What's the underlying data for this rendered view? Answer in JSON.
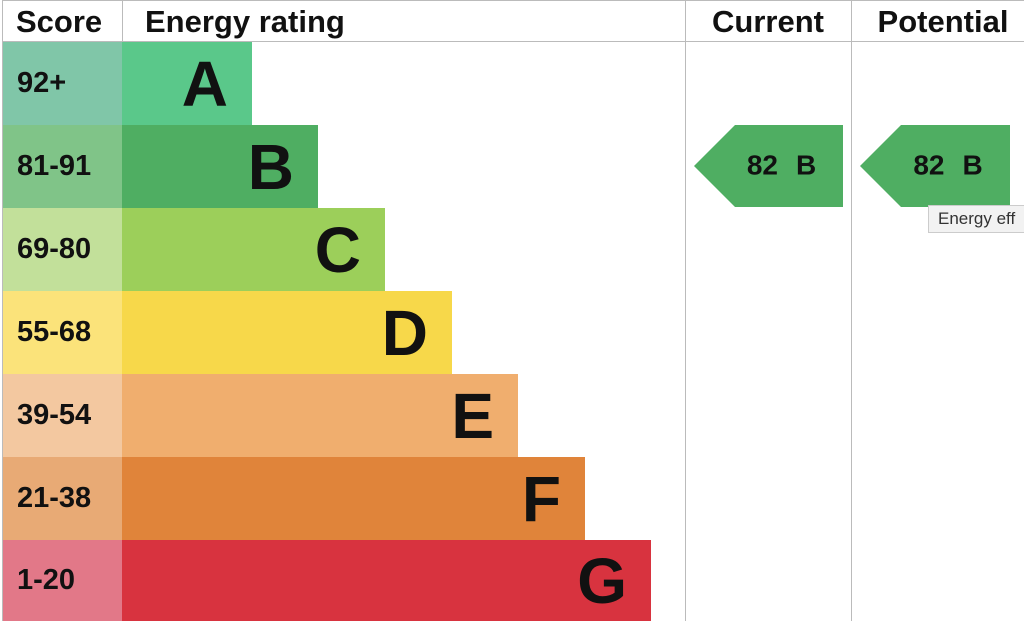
{
  "header": {
    "score": "Score",
    "rating": "Energy rating",
    "current": "Current",
    "potential": "Potential"
  },
  "rows": [
    {
      "score": "92+",
      "band": "A"
    },
    {
      "score": "81-91",
      "band": "B"
    },
    {
      "score": "69-80",
      "band": "C"
    },
    {
      "score": "55-68",
      "band": "D"
    },
    {
      "score": "39-54",
      "band": "E"
    },
    {
      "score": "21-38",
      "band": "F"
    },
    {
      "score": "1-20",
      "band": "G"
    }
  ],
  "current": {
    "score": "82",
    "band": "B"
  },
  "potential": {
    "score": "82",
    "band": "B"
  },
  "tooltip": "Energy eff"
}
